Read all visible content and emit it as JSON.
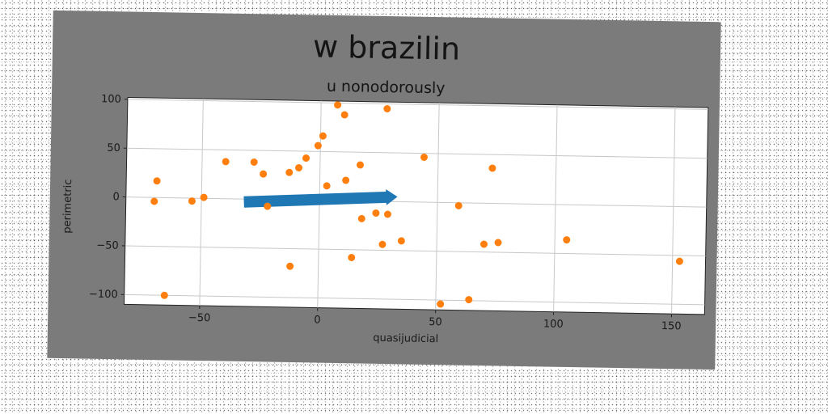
{
  "chart_data": {
    "type": "scatter",
    "title": "w brazilin",
    "subtitle": "u nonodorously",
    "xlabel": "quasijudicial",
    "ylabel": "perimetric",
    "xlim": [
      -82,
      164
    ],
    "ylim": [
      -110,
      102
    ],
    "grid": true,
    "xticks": [
      -50,
      0,
      50,
      100,
      150
    ],
    "yticks": [
      -100,
      -50,
      0,
      50,
      100
    ],
    "point_color": "#ff7f0e",
    "arrow_color": "#1f77b4",
    "background_color": "#7b7b7b",
    "plot_background": "#ffffff",
    "points": [
      {
        "x": -70,
        "y": -4
      },
      {
        "x": -69,
        "y": 17
      },
      {
        "x": -65,
        "y": -100
      },
      {
        "x": -54,
        "y": -3
      },
      {
        "x": -49,
        "y": 1
      },
      {
        "x": -40,
        "y": 38
      },
      {
        "x": -28,
        "y": 38
      },
      {
        "x": -24,
        "y": 26
      },
      {
        "x": -22,
        "y": -7
      },
      {
        "x": -13,
        "y": 28
      },
      {
        "x": -12,
        "y": -68
      },
      {
        "x": -9,
        "y": 33
      },
      {
        "x": -6,
        "y": 43
      },
      {
        "x": -1,
        "y": 56
      },
      {
        "x": 1,
        "y": 66
      },
      {
        "x": 3,
        "y": 15
      },
      {
        "x": 7,
        "y": 98
      },
      {
        "x": 10,
        "y": 88
      },
      {
        "x": 11,
        "y": 21
      },
      {
        "x": 14,
        "y": -58
      },
      {
        "x": 17,
        "y": 37
      },
      {
        "x": 18,
        "y": -18
      },
      {
        "x": 24,
        "y": -12
      },
      {
        "x": 27,
        "y": -44
      },
      {
        "x": 28,
        "y": 95
      },
      {
        "x": 29,
        "y": -13
      },
      {
        "x": 35,
        "y": -40
      },
      {
        "x": 44,
        "y": 46
      },
      {
        "x": 52,
        "y": -104
      },
      {
        "x": 59,
        "y": -3
      },
      {
        "x": 64,
        "y": -99
      },
      {
        "x": 70,
        "y": -42
      },
      {
        "x": 73,
        "y": 36
      },
      {
        "x": 76,
        "y": -40
      },
      {
        "x": 105,
        "y": -36
      },
      {
        "x": 153,
        "y": -56
      }
    ],
    "arrows": [
      {
        "x_start": -32,
        "y_start": -3,
        "x_end": 33,
        "y_end": 5
      }
    ]
  }
}
